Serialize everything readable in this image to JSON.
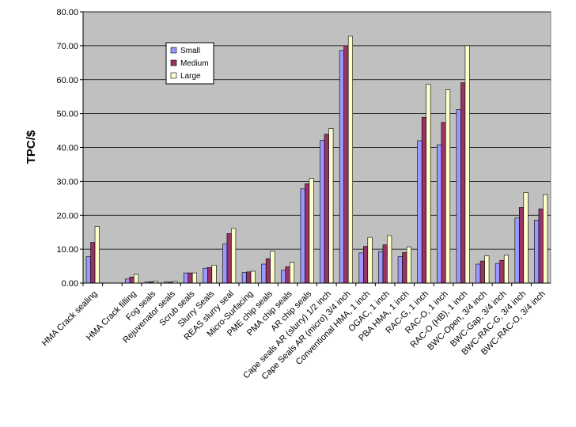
{
  "chart_data": {
    "type": "bar",
    "ylabel": "TPC/$",
    "ylim": [
      0,
      80
    ],
    "yticks": [
      "0.00",
      "10.00",
      "20.00",
      "30.00",
      "40.00",
      "50.00",
      "60.00",
      "70.00",
      "80.00"
    ],
    "grid": true,
    "legend_position": "top-left inside plot",
    "categories": [
      "HMA Crack sealing",
      "",
      "HMA Crack filling",
      "Fog seals",
      "Rejuvenator seals",
      "Scrub seals",
      "Slurry Seals",
      "REAS slurry seal",
      "Micro-Surfacing",
      "PME chip seals",
      "PMA chip seals",
      "AR chip seals",
      "Cape seals AR (slurry) 1/2 inch",
      "Cape Seals AR (micro) 3/4 inch",
      "Conventional HMA, 1 inch",
      "OGAC, 1 inch",
      "PBA HMA, 1 inch",
      "RAC-G, 1 inch",
      "RAC-O, 1 inch",
      "RAC-O (HB), 1 inch",
      "BWC-Open, 3/4 inch",
      "BWC-Gap, 3/4 inch",
      "BWC-RAC-G, 3/4 inch",
      "BWC-RAC-O, 3/4 inch"
    ],
    "series": [
      {
        "name": "Small",
        "color": "#9999ff",
        "values": [
          7.8,
          0,
          1.2,
          0.3,
          0.3,
          3.0,
          4.4,
          11.5,
          3.1,
          5.6,
          3.8,
          27.8,
          42.1,
          68.6,
          8.9,
          9.3,
          7.8,
          42.0,
          40.8,
          51.2,
          5.6,
          5.8,
          19.2,
          18.6
        ]
      },
      {
        "name": "Medium",
        "color": "#993366",
        "values": [
          12.0,
          0,
          1.8,
          0.4,
          0.3,
          3.0,
          4.6,
          14.6,
          3.3,
          7.2,
          4.8,
          29.3,
          43.9,
          70.0,
          10.8,
          11.3,
          9.0,
          48.9,
          47.4,
          59.1,
          6.5,
          6.7,
          22.3,
          21.9
        ]
      },
      {
        "name": "Large",
        "color": "#ffffcc",
        "values": [
          16.7,
          0,
          2.6,
          0.5,
          0.5,
          3.0,
          5.3,
          16.1,
          3.5,
          9.4,
          6.1,
          30.9,
          45.6,
          72.8,
          13.5,
          14.0,
          10.7,
          58.6,
          57.0,
          70.0,
          8.0,
          8.2,
          26.7,
          26.1
        ]
      }
    ]
  }
}
